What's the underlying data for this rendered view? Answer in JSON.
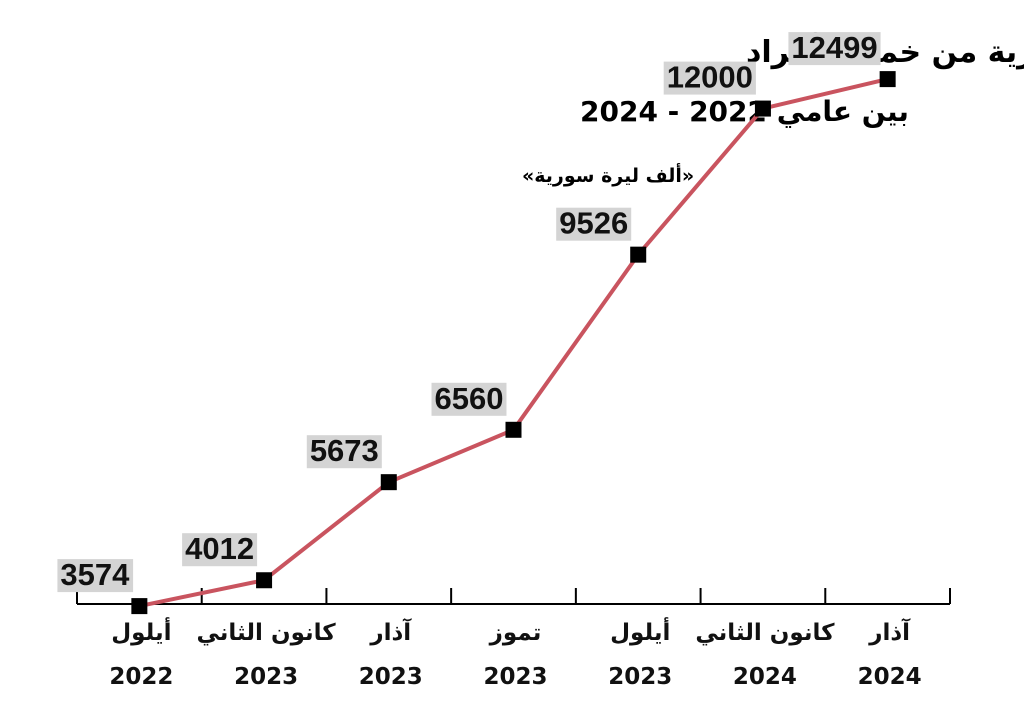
{
  "chart_data": {
    "type": "line",
    "title": "وسطي تكاليف معيشة الأسرة السورية من خمسة أفراد",
    "subtitle": "بين عامي 2022 - 2024",
    "unit_note": "«ألف ليرة سورية»",
    "categories": [
      {
        "month": "أيلول",
        "year": "2022"
      },
      {
        "month": "كانون الثاني",
        "year": "2023"
      },
      {
        "month": "آذار",
        "year": "2023"
      },
      {
        "month": "تموز",
        "year": "2023"
      },
      {
        "month": "أيلول",
        "year": "2023"
      },
      {
        "month": "كانون الثاني",
        "year": "2024"
      },
      {
        "month": "آذار",
        "year": "2024"
      }
    ],
    "values": [
      3574,
      4012,
      5673,
      6560,
      9526,
      12000,
      12499
    ],
    "ylim": [
      3000,
      13500
    ],
    "grid": false,
    "colors": {
      "line": "#c9545f",
      "marker": "#000000",
      "label_bg": "#d4d4d4",
      "axis": "#000000"
    }
  }
}
